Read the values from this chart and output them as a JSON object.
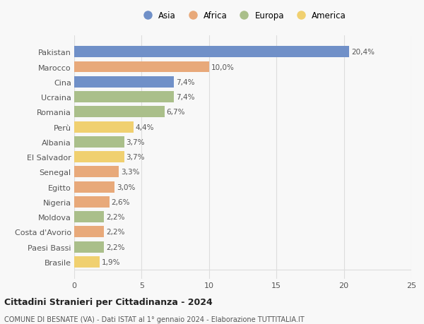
{
  "countries": [
    "Pakistan",
    "Marocco",
    "Cina",
    "Ucraina",
    "Romania",
    "Perù",
    "Albania",
    "El Salvador",
    "Senegal",
    "Egitto",
    "Nigeria",
    "Moldova",
    "Costa d'Avorio",
    "Paesi Bassi",
    "Brasile"
  ],
  "values": [
    20.4,
    10.0,
    7.4,
    7.4,
    6.7,
    4.4,
    3.7,
    3.7,
    3.3,
    3.0,
    2.6,
    2.2,
    2.2,
    2.2,
    1.9
  ],
  "labels": [
    "20,4%",
    "10,0%",
    "7,4%",
    "7,4%",
    "6,7%",
    "4,4%",
    "3,7%",
    "3,7%",
    "3,3%",
    "3,0%",
    "2,6%",
    "2,2%",
    "2,2%",
    "2,2%",
    "1,9%"
  ],
  "continents": [
    "Asia",
    "Africa",
    "Asia",
    "Europa",
    "Europa",
    "America",
    "Europa",
    "America",
    "Africa",
    "Africa",
    "Africa",
    "Europa",
    "Africa",
    "Europa",
    "America"
  ],
  "continent_colors": {
    "Asia": "#7090c8",
    "Africa": "#e8a97a",
    "Europa": "#aabf8a",
    "America": "#f0d070"
  },
  "legend_order": [
    "Asia",
    "Africa",
    "Europa",
    "America"
  ],
  "title": "Cittadini Stranieri per Cittadinanza - 2024",
  "subtitle": "COMUNE DI BESNATE (VA) - Dati ISTAT al 1° gennaio 2024 - Elaborazione TUTTITALIA.IT",
  "xlim": [
    0,
    25
  ],
  "xticks": [
    0,
    5,
    10,
    15,
    20,
    25
  ],
  "background_color": "#f8f8f8",
  "grid_color": "#dddddd",
  "bar_height": 0.75
}
